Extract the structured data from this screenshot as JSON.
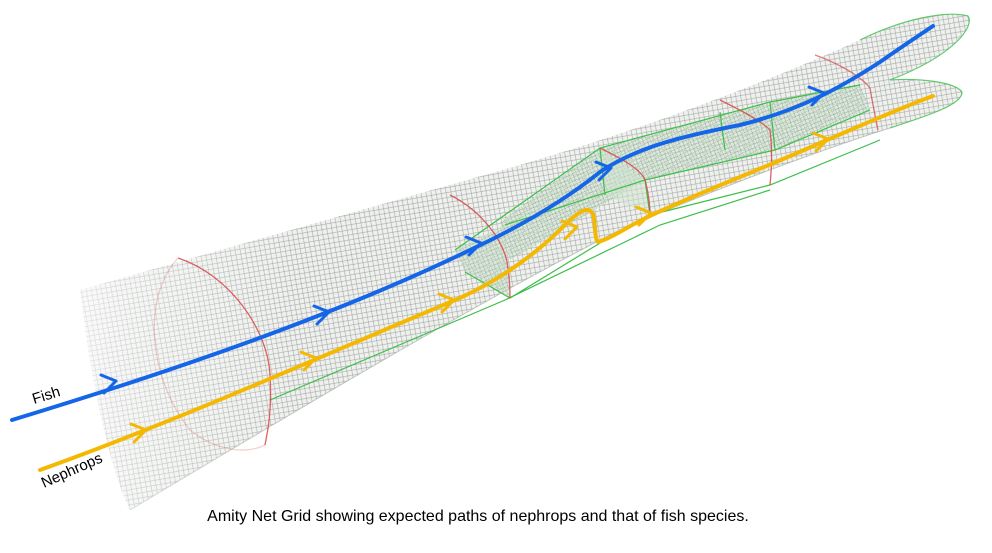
{
  "diagram": {
    "labels": {
      "fish": "Fish",
      "nephrops": "Nephrops"
    },
    "caption": "Amity Net Grid showing expected paths of nephrops and that of fish species."
  },
  "colors": {
    "fish_path": "#1565e8",
    "nephrops_path": "#f5b800",
    "mesh": "#8a8a8a",
    "grid_panel": "#3cbf4a",
    "net_hoops": "#d84848"
  }
}
